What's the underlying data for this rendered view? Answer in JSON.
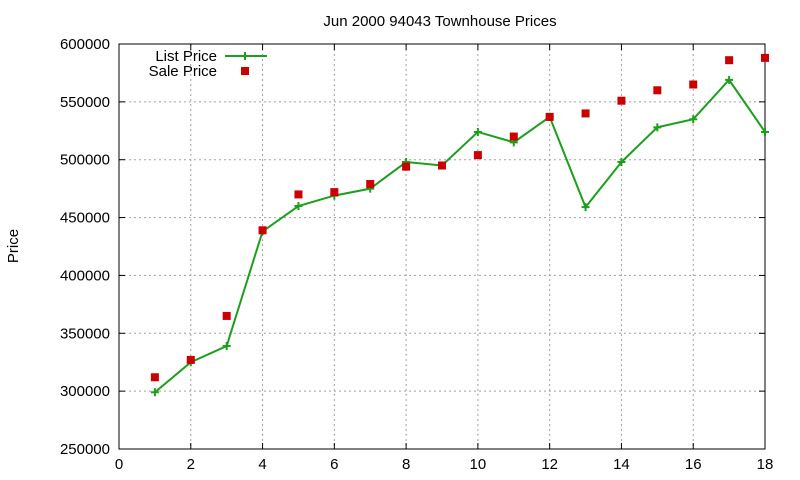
{
  "chart_data": {
    "type": "line",
    "title": "Jun 2000 94043 Townhouse Prices",
    "xlabel": "",
    "ylabel": "Price",
    "xlim": [
      0,
      18
    ],
    "ylim": [
      250000,
      600000
    ],
    "x_ticks": [
      0,
      2,
      4,
      6,
      8,
      10,
      12,
      14,
      16,
      18
    ],
    "y_ticks": [
      250000,
      300000,
      350000,
      400000,
      450000,
      500000,
      550000,
      600000
    ],
    "grid": true,
    "legend_position": "top-left",
    "series": [
      {
        "name": "List Price",
        "style": "line-with-plus-markers",
        "color": "#1aa01a",
        "x": [
          1,
          2,
          3,
          4,
          5,
          6,
          7,
          8,
          9,
          10,
          11,
          12,
          13,
          14,
          15,
          16,
          17,
          18
        ],
        "y": [
          299000,
          325000,
          339000,
          438000,
          460000,
          469000,
          475000,
          498000,
          495000,
          524000,
          515000,
          537000,
          459000,
          498000,
          528000,
          535000,
          569000,
          524000
        ]
      },
      {
        "name": "Sale Price",
        "style": "square-markers",
        "color": "#cc0000",
        "x": [
          1,
          2,
          3,
          4,
          5,
          6,
          7,
          8,
          9,
          10,
          11,
          12,
          13,
          14,
          15,
          16,
          17,
          18
        ],
        "y": [
          312000,
          327000,
          365000,
          439000,
          470000,
          472000,
          479000,
          494000,
          495000,
          504000,
          520000,
          537000,
          540000,
          551000,
          560000,
          565000,
          586000,
          588000
        ]
      }
    ]
  }
}
